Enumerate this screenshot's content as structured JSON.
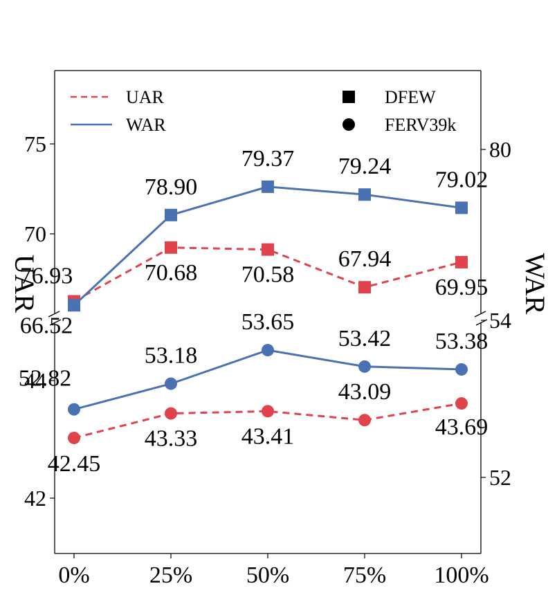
{
  "chart_data": {
    "type": "line",
    "categories": [
      "0%",
      "25%",
      "50%",
      "75%",
      "100%"
    ],
    "left_axis_label": "UAR",
    "right_axis_label": "WAR",
    "legend": {
      "lines": [
        {
          "label": "UAR",
          "style": "dashed",
          "color": "#e0434b"
        },
        {
          "label": "WAR",
          "style": "solid",
          "color": "#4a72b2"
        }
      ],
      "markers": [
        {
          "label": "DFEW",
          "shape": "square"
        },
        {
          "label": "FERV39k",
          "shape": "circle"
        }
      ]
    },
    "panels": [
      {
        "dataset": "DFEW",
        "marker": "square",
        "uar_ylim": [
          67.5,
          79.5
        ],
        "uar_ticks": [
          70,
          75
        ],
        "war_ylim": [
          77.3,
          81.3
        ],
        "war_ticks": [
          80
        ],
        "series": [
          {
            "name": "UAR",
            "axis": "left",
            "values": [
              66.52,
              70.68,
              70.58,
              67.94,
              69.95
            ],
            "plot_values": [
              68.0,
              70.68,
              70.58,
              68.7,
              69.95
            ]
          },
          {
            "name": "WAR",
            "axis": "right",
            "values": [
              76.93,
              78.9,
              79.37,
              79.24,
              79.02
            ],
            "plot_values": [
              77.4,
              78.9,
              79.37,
              79.24,
              79.02
            ]
          }
        ]
      },
      {
        "dataset": "FERV39k",
        "marker": "circle",
        "uar_ylim": [
          38.3,
          46.5
        ],
        "uar_ticks": [
          42,
          44
        ],
        "war_ylim": [
          50.8,
          54.0
        ],
        "war_ticks": [
          52,
          54
        ],
        "series": [
          {
            "name": "UAR",
            "axis": "left",
            "values": [
              42.45,
              43.33,
              43.41,
              43.09,
              43.69
            ]
          },
          {
            "name": "WAR",
            "axis": "right",
            "values": [
              52.82,
              53.18,
              53.65,
              53.42,
              53.38
            ]
          }
        ]
      }
    ],
    "colors": {
      "uar": "#e0434b",
      "war": "#4a72b2"
    }
  }
}
